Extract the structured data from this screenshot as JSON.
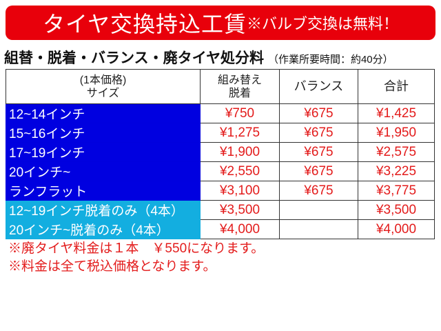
{
  "banner": {
    "title": "タイヤ交換持込工賃",
    "note": "※バルブ交換は無料！"
  },
  "subtitle": {
    "text": "組替・脱着・バランス・廃タイヤ処分料",
    "time": "（作業所要時間：約40分）"
  },
  "table": {
    "headers": {
      "size_line1": "(1本価格)",
      "size_line2": "サイズ",
      "mount_line1": "組み替え",
      "mount_line2": "脱着",
      "balance": "バランス",
      "total": "合計"
    },
    "rows": [
      {
        "size": "12~14インチ",
        "mount": "¥750",
        "balance": "¥675",
        "total": "¥1,425",
        "color": "#0000e0"
      },
      {
        "size": "15~16インチ",
        "mount": "¥1,275",
        "balance": "¥675",
        "total": "¥1,950",
        "color": "#0000e0"
      },
      {
        "size": "17~19インチ",
        "mount": "¥1,900",
        "balance": "¥675",
        "total": "¥2,575",
        "color": "#0000e0"
      },
      {
        "size": "20インチ~",
        "mount": "¥2,550",
        "balance": "¥675",
        "total": "¥3,225",
        "color": "#0000e0"
      },
      {
        "size": "ランフラット",
        "mount": "¥3,100",
        "balance": "¥675",
        "total": "¥3,775",
        "color": "#0000e0"
      },
      {
        "size": "12~19インチ脱着のみ（4本）",
        "mount": "¥3,500",
        "balance": "",
        "total": "¥3,500",
        "color": "#13aee0"
      },
      {
        "size": "20インチ~脱着のみ（4本）",
        "mount": "¥4,000",
        "balance": "",
        "total": "¥4,000",
        "color": "#13aee0"
      }
    ]
  },
  "notes": [
    "※廃タイヤ料金は１本　￥550になります。",
    "※料金は全て税込価格となります。"
  ],
  "colors": {
    "banner": "#e8000b",
    "price_text": "#e31b1b"
  }
}
